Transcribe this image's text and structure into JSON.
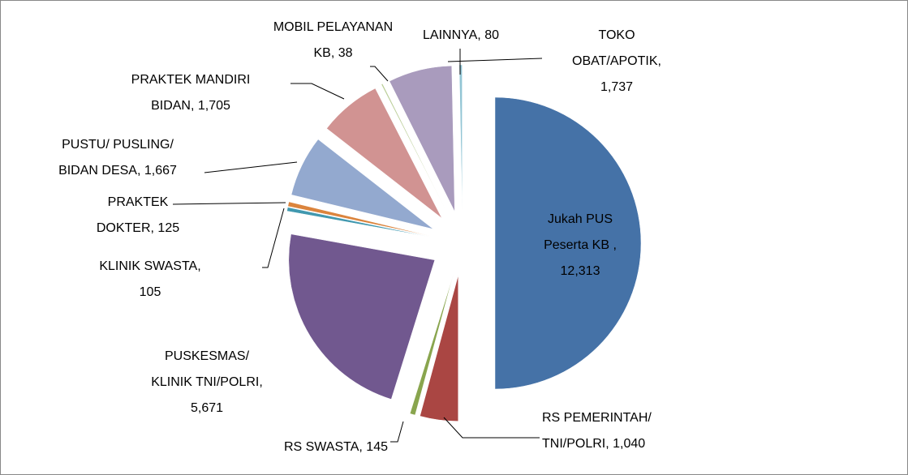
{
  "chart_data": {
    "type": "pie",
    "exploded": true,
    "categories": [
      "Jukah PUS Peserta KB ",
      "RS PEMERINTAH/ TNI/POLRI",
      "RS SWASTA",
      "PUSKESMAS/ KLINIK TNI/POLRI",
      "KLINIK SWASTA",
      "PRAKTEK DOKTER",
      "PUSTU/ PUSLING/ BIDAN DESA",
      "PRAKTEK MANDIRI BIDAN",
      "MOBIL PELAYANAN KB",
      "TOKO OBAT/APOTIK",
      "LAINNYA"
    ],
    "values": [
      12313,
      1040,
      145,
      5671,
      105,
      125,
      1667,
      1705,
      38,
      1737,
      80
    ],
    "value_labels": [
      "12,313",
      "1,040",
      "145",
      "5,671",
      "105",
      "125",
      "1,667",
      "1,705",
      "38",
      "1,737",
      "80"
    ],
    "colors": [
      "#4572a7",
      "#aa4643",
      "#89a54e",
      "#71588f",
      "#4198af",
      "#db843d",
      "#93a9cf",
      "#d19392",
      "#b9cd96",
      "#a99bbd",
      "#92c5d4"
    ]
  }
}
